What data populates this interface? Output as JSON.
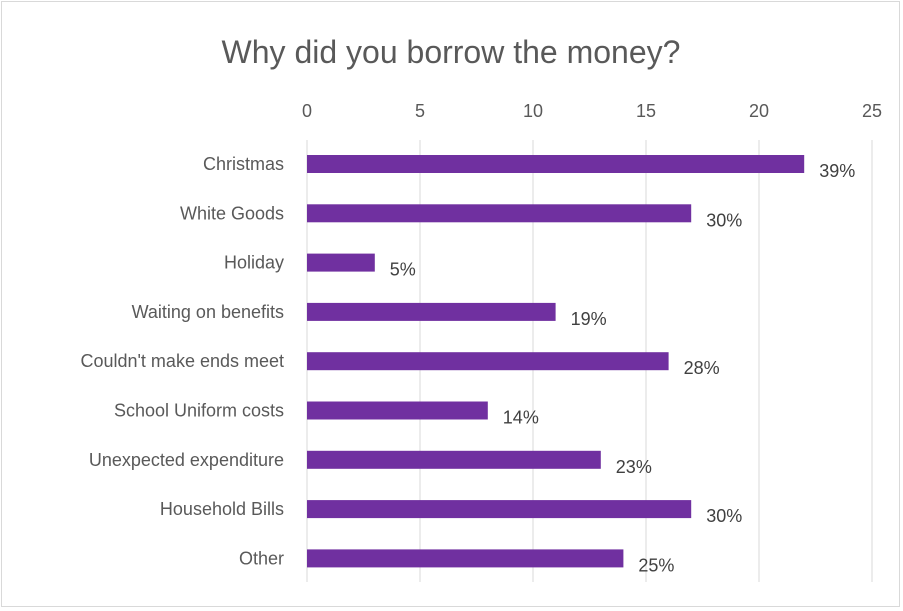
{
  "chart_data": {
    "type": "bar",
    "orientation": "horizontal",
    "title": "Why did you borrow the money?",
    "xlabel": "",
    "ylabel": "",
    "xlim": [
      0,
      25
    ],
    "x_ticks": [
      0,
      5,
      10,
      15,
      20,
      25
    ],
    "x_axis_position": "top",
    "grid": true,
    "legend": "none",
    "bar_color": "#7030a0",
    "categories": [
      "Christmas",
      "White Goods",
      "Holiday",
      "Waiting on benefits",
      "Couldn't make ends meet",
      "School Uniform costs",
      "Unexpected expenditure",
      "Household Bills",
      "Other"
    ],
    "values": [
      22,
      17,
      3,
      11,
      16,
      8,
      13,
      17,
      14
    ],
    "data_labels": [
      "39%",
      "30%",
      "5%",
      "19%",
      "28%",
      "14%",
      "23%",
      "30%",
      "25%"
    ]
  }
}
